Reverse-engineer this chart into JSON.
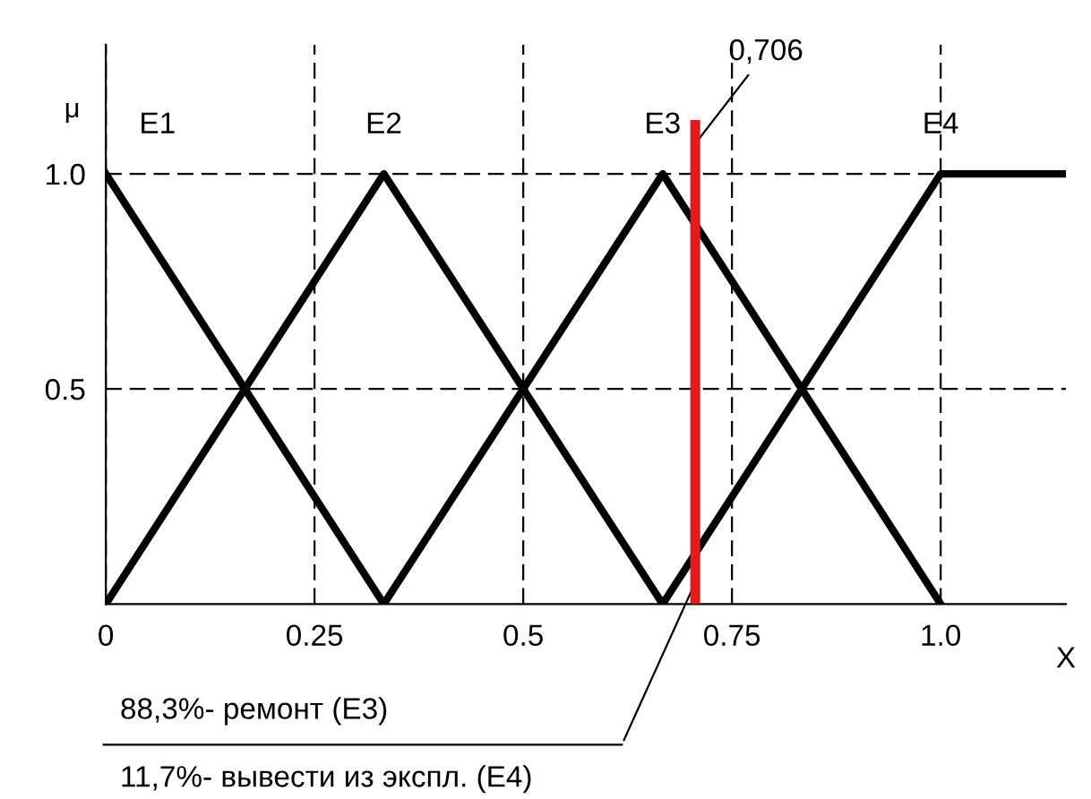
{
  "chart_data": {
    "type": "line",
    "xlabel": "X",
    "ylabel": "μ",
    "xlim": [
      0,
      1.15
    ],
    "ylim": [
      0,
      1.3
    ],
    "xticks": [
      0,
      0.25,
      0.5,
      0.75,
      {
        "value": 1,
        "label": "1.0"
      }
    ],
    "yticks": [
      {
        "value": 0.5,
        "label": "0.5"
      },
      {
        "value": 1,
        "label": "1.0"
      }
    ],
    "grid": true,
    "marker": "none",
    "line_style": "solid",
    "series": [
      {
        "name": "E1",
        "color": "#000000",
        "x": [
          0,
          0.333
        ],
        "values": [
          1,
          0
        ]
      },
      {
        "name": "E2",
        "color": "#000000",
        "x": [
          0,
          0.333,
          0.667
        ],
        "values": [
          0,
          1,
          0
        ]
      },
      {
        "name": "E3",
        "color": "#000000",
        "x": [
          0.333,
          0.667,
          1
        ],
        "values": [
          0,
          1,
          0
        ]
      },
      {
        "name": "E4",
        "color": "#000000",
        "x": [
          0.667,
          1,
          1.15
        ],
        "values": [
          0,
          1,
          1
        ]
      }
    ],
    "ref_lines": [
      {
        "axis": "x",
        "value": 0.706,
        "label": "0,706",
        "color": "#e41b1b",
        "line_style": "solid"
      }
    ],
    "annotations": [
      "88,3%- ремонт (E3)",
      "11,7%- вывести из экспл. (E4)"
    ]
  }
}
